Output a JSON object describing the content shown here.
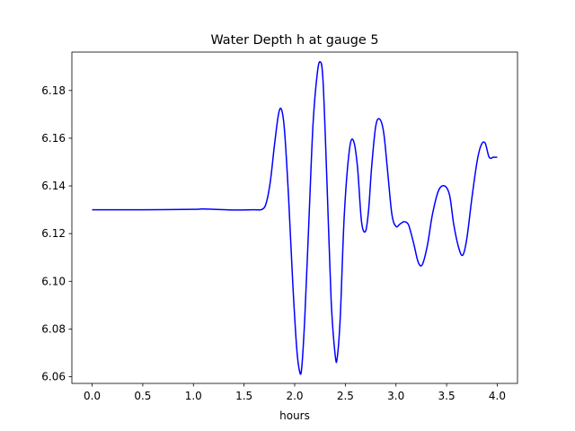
{
  "chart_data": {
    "type": "line",
    "title": "Water Depth h at gauge 5",
    "xlabel": "hours",
    "ylabel": "",
    "xlim": [
      -0.2,
      4.2
    ],
    "ylim": [
      6.0572,
      6.1961
    ],
    "grid": false,
    "legend": "none",
    "xticks": [
      0.0,
      0.5,
      1.0,
      1.5,
      2.0,
      2.5,
      3.0,
      3.5,
      4.0
    ],
    "xtick_labels": [
      "0.0",
      "0.5",
      "1.0",
      "1.5",
      "2.0",
      "2.5",
      "3.0",
      "3.5",
      "4.0"
    ],
    "yticks": [
      6.06,
      6.08,
      6.1,
      6.12,
      6.14,
      6.16,
      6.18
    ],
    "ytick_labels": [
      "6.06",
      "6.08",
      "6.10",
      "6.12",
      "6.14",
      "6.16",
      "6.18"
    ],
    "series": [
      {
        "color": "#0000ff",
        "x": [
          0.0,
          0.5,
          1.0,
          1.1,
          1.4,
          1.6,
          1.68,
          1.72,
          1.76,
          1.8,
          1.84,
          1.87,
          1.9,
          1.94,
          1.98,
          2.02,
          2.05,
          2.07,
          2.1,
          2.14,
          2.18,
          2.22,
          2.25,
          2.28,
          2.32,
          2.36,
          2.4,
          2.42,
          2.45,
          2.49,
          2.54,
          2.58,
          2.62,
          2.66,
          2.7,
          2.73,
          2.76,
          2.8,
          2.84,
          2.88,
          2.92,
          2.96,
          3.0,
          3.04,
          3.08,
          3.12,
          3.15,
          3.18,
          3.22,
          3.26,
          3.31,
          3.36,
          3.42,
          3.48,
          3.53,
          3.57,
          3.62,
          3.66,
          3.7,
          3.75,
          3.8,
          3.84,
          3.88,
          3.92,
          3.96,
          3.98,
          4.0
        ],
        "y": [
          6.13,
          6.13,
          6.1302,
          6.1303,
          6.1299,
          6.13,
          6.1302,
          6.133,
          6.142,
          6.157,
          6.17,
          6.172,
          6.163,
          6.135,
          6.1,
          6.072,
          6.062,
          6.064,
          6.085,
          6.125,
          6.165,
          6.186,
          6.192,
          6.184,
          6.14,
          6.092,
          6.069,
          6.068,
          6.085,
          6.128,
          6.155,
          6.159,
          6.148,
          6.125,
          6.121,
          6.13,
          6.148,
          6.165,
          6.168,
          6.162,
          6.145,
          6.128,
          6.123,
          6.124,
          6.125,
          6.124,
          6.12,
          6.115,
          6.108,
          6.107,
          6.115,
          6.128,
          6.138,
          6.14,
          6.136,
          6.124,
          6.114,
          6.111,
          6.118,
          6.135,
          6.15,
          6.157,
          6.158,
          6.152,
          6.152,
          6.152,
          6.152
        ]
      }
    ]
  }
}
